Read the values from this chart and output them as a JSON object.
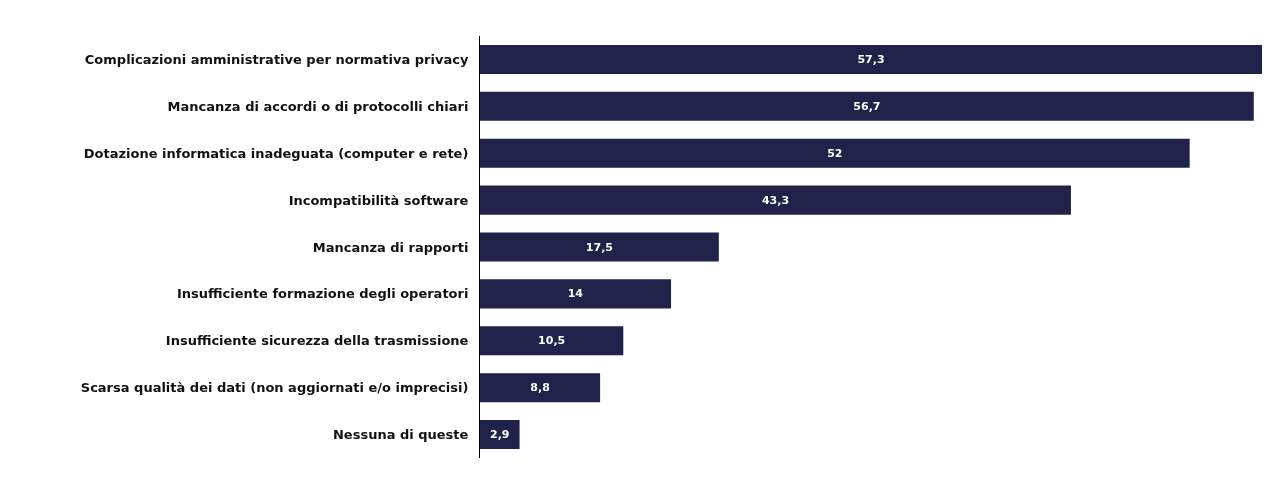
{
  "chart_data": {
    "type": "bar",
    "orientation": "horizontal",
    "categories": [
      "Complicazioni amministrative per normativa privacy",
      "Mancanza di accordi o di protocolli chiari",
      "Dotazione informatica inadeguata (computer e rete)",
      "Incompatibilità software",
      "Mancanza di rapporti",
      "Insufficiente formazione degli operatori",
      "Insufficiente sicurezza della trasmissione",
      "Scarsa qualità dei dati (non aggiornati e/o imprecisi)",
      "Nessuna di queste"
    ],
    "values": [
      57.3,
      56.7,
      52,
      43.3,
      17.5,
      14,
      10.5,
      8.8,
      2.9
    ],
    "value_labels": [
      "57,3",
      "56,7",
      "52",
      "43,3",
      "17,5",
      "14",
      "10,5",
      "8,8",
      "2,9"
    ],
    "color": "#1f2349",
    "xlim": [
      0,
      57.3
    ],
    "tick_labels": "y"
  }
}
